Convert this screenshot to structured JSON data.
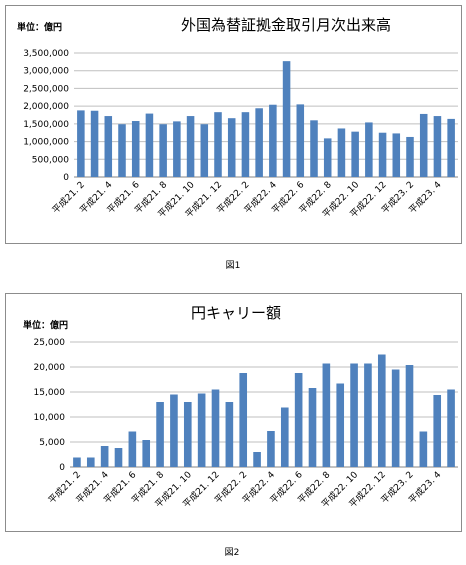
{
  "chart_data": [
    {
      "type": "bar",
      "unit_label": "単位：億円",
      "title": "外国為替証拠金取引月次出来高",
      "caption": "図1",
      "ylim": [
        0,
        3500000
      ],
      "y_ticks": [
        "0",
        "500,000",
        "1,000,000",
        "1,500,000",
        "2,000,000",
        "2,500,000",
        "3,000,000",
        "3,500,000"
      ],
      "categories": [
        "平成21. 2",
        "平成21. 3",
        "平成21. 4",
        "平成21. 5",
        "平成21. 6",
        "平成21. 7",
        "平成21. 8",
        "平成21. 9",
        "平成21. 10",
        "平成21. 11",
        "平成21. 12",
        "平成22. 1",
        "平成22. 2",
        "平成22. 3",
        "平成22. 4",
        "平成22. 5",
        "平成22. 6",
        "平成22. 7",
        "平成22. 8",
        "平成22. 9",
        "平成22. 10",
        "平成22. 11",
        "平成22. 12",
        "平成23. 1",
        "平成23. 2",
        "平成23. 3",
        "平成23. 4",
        "平成23. 5"
      ],
      "x_tick_labels": [
        "平成21. 2",
        "平成21. 4",
        "平成21. 6",
        "平成21. 8",
        "平成21. 10",
        "平成21. 12",
        "平成22. 2",
        "平成22. 4",
        "平成22. 6",
        "平成22. 8",
        "平成22. 10",
        "平成22. 12",
        "平成23. 2",
        "平成23. 4"
      ],
      "values": [
        1880000,
        1870000,
        1720000,
        1490000,
        1580000,
        1790000,
        1490000,
        1570000,
        1720000,
        1490000,
        1830000,
        1660000,
        1830000,
        1940000,
        2040000,
        3270000,
        2050000,
        1600000,
        1090000,
        1370000,
        1280000,
        1540000,
        1250000,
        1230000,
        1130000,
        1780000,
        1720000,
        1640000
      ],
      "bar_color": "#4f81bd",
      "grid": true
    },
    {
      "type": "bar",
      "unit_label": "単位：億円",
      "title": "円キャリー額",
      "caption": "図2",
      "ylim": [
        0,
        25000
      ],
      "y_ticks": [
        "0",
        "5,000",
        "10,000",
        "15,000",
        "20,000",
        "25,000"
      ],
      "categories": [
        "平成21. 2",
        "平成21. 3",
        "平成21. 4",
        "平成21. 5",
        "平成21. 6",
        "平成21. 7",
        "平成21. 8",
        "平成21. 9",
        "平成21. 10",
        "平成21. 11",
        "平成21. 12",
        "平成22. 1",
        "平成22. 2",
        "平成22. 3",
        "平成22. 4",
        "平成22. 5",
        "平成22. 6",
        "平成22. 7",
        "平成22. 8",
        "平成22. 9",
        "平成22. 10",
        "平成22. 11",
        "平成22. 12",
        "平成23. 1",
        "平成23. 2",
        "平成23. 3",
        "平成23. 4",
        "平成23. 5"
      ],
      "x_tick_labels": [
        "平成21. 2",
        "平成21. 4",
        "平成21. 6",
        "平成21. 8",
        "平成21. 10",
        "平成21. 12",
        "平成22. 2",
        "平成22. 4",
        "平成22. 6",
        "平成22. 8",
        "平成22. 10",
        "平成22. 12",
        "平成23. 2",
        "平成23. 4"
      ],
      "values": [
        1900,
        1900,
        4200,
        3800,
        7100,
        5400,
        13000,
        14500,
        13000,
        14700,
        15500,
        13000,
        18800,
        3000,
        7200,
        11900,
        18800,
        15800,
        20700,
        16700,
        20700,
        20700,
        22500,
        19500,
        20400,
        7100,
        14400,
        15500
      ],
      "bar_color": "#4f81bd",
      "grid": true
    }
  ]
}
